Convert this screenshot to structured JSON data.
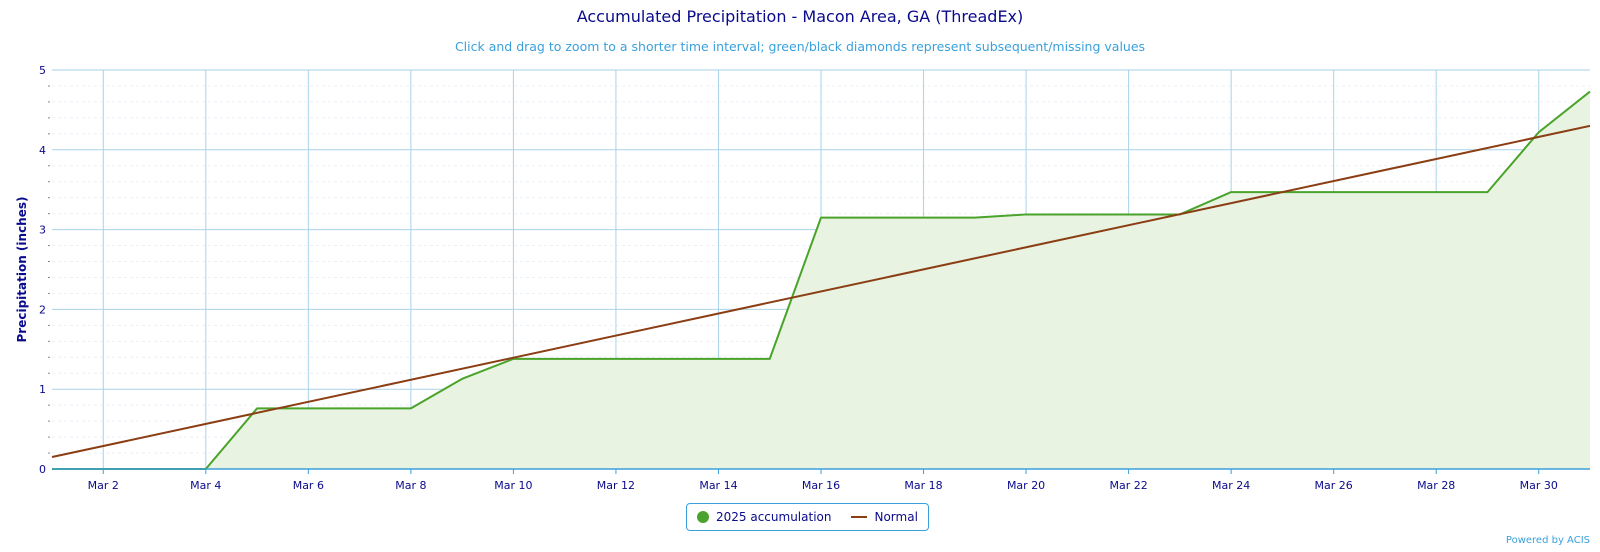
{
  "header": {
    "title": "Accumulated Precipitation - Macon Area, GA (ThreadEx)",
    "subtitle": "Click and drag to zoom to a shorter time interval; green/black diamonds represent subsequent/missing values"
  },
  "credit": "Powered by ACIS",
  "colors": {
    "accumulation": "#4aa32a",
    "accumulation_fill": "#e8f3e2",
    "normal": "#8b3d14",
    "grid_major": "#a9d2ea",
    "grid_minor": "#e9f1f6",
    "axis": "#3aa0dc"
  },
  "chart_data": {
    "type": "area",
    "title": "Accumulated Precipitation - Macon Area, GA (ThreadEx)",
    "ylabel": "Precipitation (inches)",
    "xlabel": "",
    "ylim": [
      0,
      5
    ],
    "yticks": [
      0,
      1,
      2,
      3,
      4,
      5
    ],
    "xlim": [
      1,
      31
    ],
    "xticks": [
      2,
      4,
      6,
      8,
      10,
      12,
      14,
      16,
      18,
      20,
      22,
      24,
      26,
      28,
      30
    ],
    "xtick_labels": [
      "Mar 2",
      "Mar 4",
      "Mar 6",
      "Mar 8",
      "Mar 10",
      "Mar 12",
      "Mar 14",
      "Mar 16",
      "Mar 18",
      "Mar 20",
      "Mar 22",
      "Mar 24",
      "Mar 26",
      "Mar 28",
      "Mar 30"
    ],
    "grid": true,
    "legend_position": "bottom-center",
    "series": [
      {
        "name": "2025 accumulation",
        "type": "area",
        "x": [
          1,
          2,
          3,
          4,
          5,
          6,
          7,
          8,
          9,
          10,
          11,
          12,
          13,
          14,
          15,
          16,
          17,
          18,
          19,
          20,
          21,
          22,
          23,
          24,
          25,
          26,
          27,
          28,
          29,
          30,
          31
        ],
        "values": [
          0,
          0,
          0,
          0,
          0.76,
          0.76,
          0.76,
          0.76,
          1.13,
          1.38,
          1.38,
          1.38,
          1.38,
          1.38,
          1.38,
          3.15,
          3.15,
          3.15,
          3.15,
          3.19,
          3.19,
          3.19,
          3.19,
          3.47,
          3.47,
          3.47,
          3.47,
          3.47,
          3.47,
          4.22,
          4.73
        ]
      },
      {
        "name": "Normal",
        "type": "line",
        "x": [
          1,
          31
        ],
        "values": [
          0.15,
          4.3
        ]
      }
    ]
  }
}
